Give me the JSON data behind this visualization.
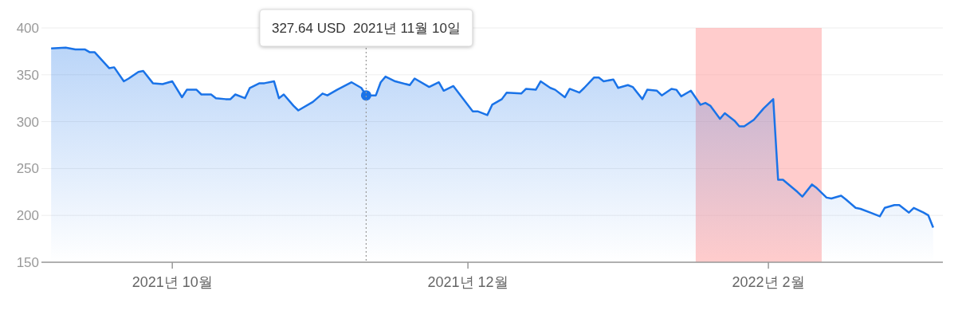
{
  "chart_data": {
    "type": "area",
    "x": [
      "2021-09-06",
      "2021-09-09",
      "2021-09-11",
      "2021-09-13",
      "2021-09-14",
      "2021-09-15",
      "2021-09-18",
      "2021-09-19",
      "2021-09-21",
      "2021-09-22",
      "2021-09-24",
      "2021-09-25",
      "2021-09-27",
      "2021-09-29",
      "2021-10-01",
      "2021-10-03",
      "2021-10-04",
      "2021-10-06",
      "2021-10-07",
      "2021-10-09",
      "2021-10-10",
      "2021-10-12",
      "2021-10-13",
      "2021-10-14",
      "2021-10-16",
      "2021-10-17",
      "2021-10-19",
      "2021-10-20",
      "2021-10-22",
      "2021-10-23",
      "2021-10-24",
      "2021-10-26",
      "2021-10-27",
      "2021-10-30",
      "2021-11-01",
      "2021-11-02",
      "2021-11-04",
      "2021-11-07",
      "2021-11-09",
      "2021-11-10",
      "2021-11-12",
      "2021-11-13",
      "2021-11-14",
      "2021-11-16",
      "2021-11-19",
      "2021-11-20",
      "2021-11-23",
      "2021-11-25",
      "2021-11-26",
      "2021-11-28",
      "2021-12-02",
      "2021-12-03",
      "2021-12-05",
      "2021-12-06",
      "2021-12-08",
      "2021-12-09",
      "2021-12-12",
      "2021-12-13",
      "2021-12-15",
      "2021-12-16",
      "2021-12-18",
      "2021-12-19",
      "2021-12-21",
      "2021-12-22",
      "2021-12-24",
      "2021-12-25",
      "2021-12-27",
      "2021-12-28",
      "2021-12-29",
      "2021-12-31",
      "2022-01-01",
      "2022-01-03",
      "2022-01-04",
      "2022-01-06",
      "2022-01-07",
      "2022-01-09",
      "2022-01-10",
      "2022-01-12",
      "2022-01-13",
      "2022-01-14",
      "2022-01-16",
      "2022-01-18",
      "2022-01-19",
      "2022-01-20",
      "2022-01-22",
      "2022-01-23",
      "2022-01-25",
      "2022-01-26",
      "2022-01-27",
      "2022-01-29",
      "2022-01-31",
      "2022-02-02",
      "2022-02-03",
      "2022-02-04",
      "2022-02-07",
      "2022-02-08",
      "2022-02-10",
      "2022-02-11",
      "2022-02-13",
      "2022-02-14",
      "2022-02-16",
      "2022-02-17",
      "2022-02-19",
      "2022-02-20",
      "2022-02-22",
      "2022-02-24",
      "2022-02-25",
      "2022-02-27",
      "2022-02-28",
      "2022-03-02",
      "2022-03-03",
      "2022-03-05",
      "2022-03-06",
      "2022-03-07"
    ],
    "series": [
      {
        "type": "scatter",
        "color": "#1a73e8",
        "x": [
          "2021-11-10"
        ],
        "values": [
          328
        ]
      },
      {
        "color": "#1a73e8",
        "values": [
          378,
          379,
          377,
          377,
          374,
          374,
          357,
          358,
          343,
          346,
          353,
          354,
          341,
          340,
          343,
          326,
          334,
          334,
          329,
          329,
          325,
          324,
          324,
          329,
          325,
          336,
          341,
          341,
          343,
          325,
          329,
          317,
          312,
          321,
          330,
          328,
          334,
          342,
          336,
          328,
          328,
          342,
          348,
          343,
          339,
          346,
          337,
          342,
          333,
          338,
          311,
          311,
          307,
          318,
          324,
          331,
          330,
          335,
          334,
          343,
          336,
          334,
          326,
          335,
          331,
          336,
          347,
          347,
          343,
          345,
          336,
          339,
          337,
          324,
          334,
          333,
          328,
          335,
          334,
          327,
          333,
          318,
          320,
          317,
          303,
          309,
          301,
          295,
          295,
          302,
          314,
          324,
          238,
          238,
          225,
          220,
          233,
          229,
          219,
          218,
          221,
          217,
          208,
          207,
          203,
          199,
          208,
          211,
          211,
          203,
          208,
          203,
          200,
          187
        ]
      }
    ],
    "xlim": [
      "2021-09-04",
      "2022-03-09"
    ],
    "xticks": [
      {
        "value": "2021-10-01",
        "label": "2021년 10월"
      },
      {
        "value": "2021-12-01",
        "label": "2021년 12월"
      },
      {
        "value": "2022-02-01",
        "label": "2022년 2월"
      }
    ],
    "ylim": [
      150,
      400
    ],
    "yticks": [
      150,
      200,
      250,
      300,
      350,
      400
    ],
    "grid": "y",
    "ref_lines": [
      {
        "axis": "x",
        "value": "2021-11-10",
        "color": "#999999",
        "line_style": "dotted"
      }
    ],
    "bands": [
      {
        "axis": "x",
        "from": "2022-01-17",
        "to": "2022-02-12",
        "color": "#ff9999"
      }
    ],
    "annotations": [
      "327.64 USD  2021년 11월 10일"
    ]
  }
}
